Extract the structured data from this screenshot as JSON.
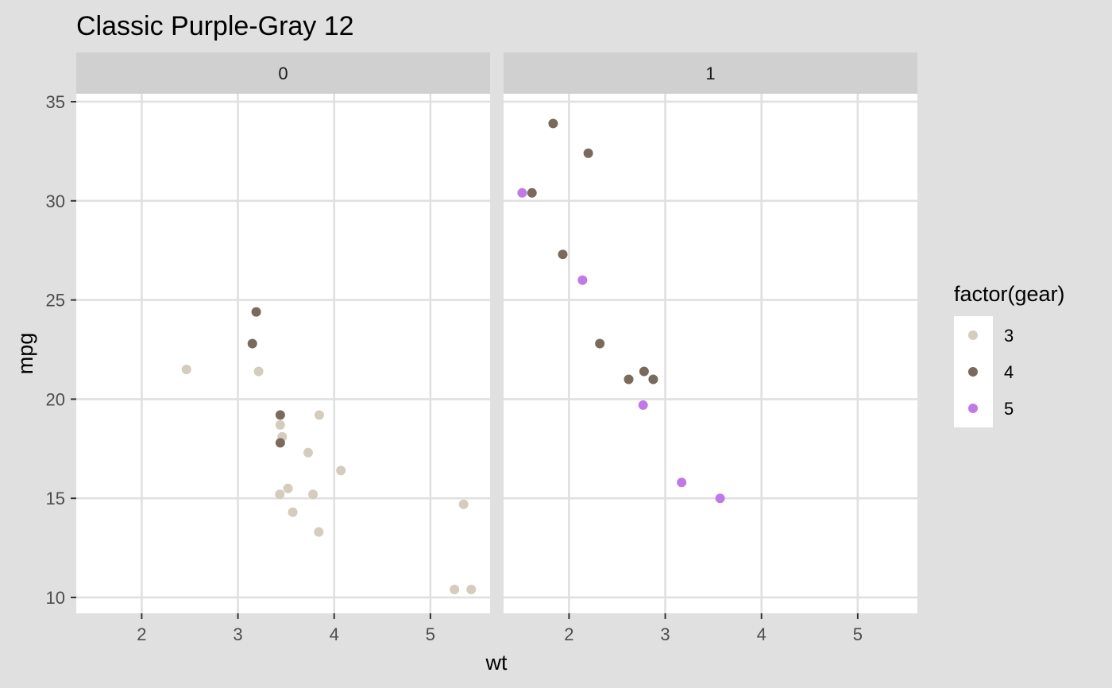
{
  "chart_data": {
    "type": "scatter",
    "title": "Classic Purple-Gray 12",
    "xlabel": "wt",
    "ylabel": "mpg",
    "xlim": [
      1.32,
      5.62
    ],
    "ylim": [
      9.2,
      35.4
    ],
    "x_ticks": [
      2,
      3,
      4,
      5
    ],
    "y_ticks": [
      10,
      15,
      20,
      25,
      30,
      35
    ],
    "grid": true,
    "legend": {
      "title": "factor(gear)",
      "position": "right",
      "entries": [
        {
          "label": "3",
          "color": "#d4ccbc"
        },
        {
          "label": "4",
          "color": "#7a6a5c"
        },
        {
          "label": "5",
          "color": "#c07ae8"
        }
      ]
    },
    "facets": [
      {
        "label": "0",
        "points": [
          {
            "wt": 2.465,
            "mpg": 21.5,
            "gear": "3"
          },
          {
            "wt": 3.215,
            "mpg": 21.4,
            "gear": "3"
          },
          {
            "wt": 3.44,
            "mpg": 18.7,
            "gear": "3"
          },
          {
            "wt": 3.46,
            "mpg": 18.1,
            "gear": "3"
          },
          {
            "wt": 3.57,
            "mpg": 14.3,
            "gear": "3"
          },
          {
            "wt": 4.07,
            "mpg": 16.4,
            "gear": "3"
          },
          {
            "wt": 3.73,
            "mpg": 17.3,
            "gear": "3"
          },
          {
            "wt": 3.78,
            "mpg": 15.2,
            "gear": "3"
          },
          {
            "wt": 5.25,
            "mpg": 10.4,
            "gear": "3"
          },
          {
            "wt": 5.424,
            "mpg": 10.4,
            "gear": "3"
          },
          {
            "wt": 5.345,
            "mpg": 14.7,
            "gear": "3"
          },
          {
            "wt": 3.52,
            "mpg": 15.5,
            "gear": "3"
          },
          {
            "wt": 3.435,
            "mpg": 15.2,
            "gear": "3"
          },
          {
            "wt": 3.84,
            "mpg": 13.3,
            "gear": "3"
          },
          {
            "wt": 3.845,
            "mpg": 19.2,
            "gear": "3"
          },
          {
            "wt": 3.19,
            "mpg": 24.4,
            "gear": "4"
          },
          {
            "wt": 3.15,
            "mpg": 22.8,
            "gear": "4"
          },
          {
            "wt": 3.44,
            "mpg": 19.2,
            "gear": "4"
          },
          {
            "wt": 3.44,
            "mpg": 17.8,
            "gear": "4"
          }
        ]
      },
      {
        "label": "1",
        "points": [
          {
            "wt": 2.62,
            "mpg": 21.0,
            "gear": "4"
          },
          {
            "wt": 2.875,
            "mpg": 21.0,
            "gear": "4"
          },
          {
            "wt": 2.32,
            "mpg": 22.8,
            "gear": "4"
          },
          {
            "wt": 2.2,
            "mpg": 32.4,
            "gear": "4"
          },
          {
            "wt": 1.615,
            "mpg": 30.4,
            "gear": "4"
          },
          {
            "wt": 1.835,
            "mpg": 33.9,
            "gear": "4"
          },
          {
            "wt": 1.935,
            "mpg": 27.3,
            "gear": "4"
          },
          {
            "wt": 2.78,
            "mpg": 21.4,
            "gear": "4"
          },
          {
            "wt": 2.14,
            "mpg": 26.0,
            "gear": "5"
          },
          {
            "wt": 1.513,
            "mpg": 30.4,
            "gear": "5"
          },
          {
            "wt": 3.17,
            "mpg": 15.8,
            "gear": "5"
          },
          {
            "wt": 2.77,
            "mpg": 19.7,
            "gear": "5"
          },
          {
            "wt": 3.57,
            "mpg": 15.0,
            "gear": "5"
          }
        ]
      }
    ]
  }
}
